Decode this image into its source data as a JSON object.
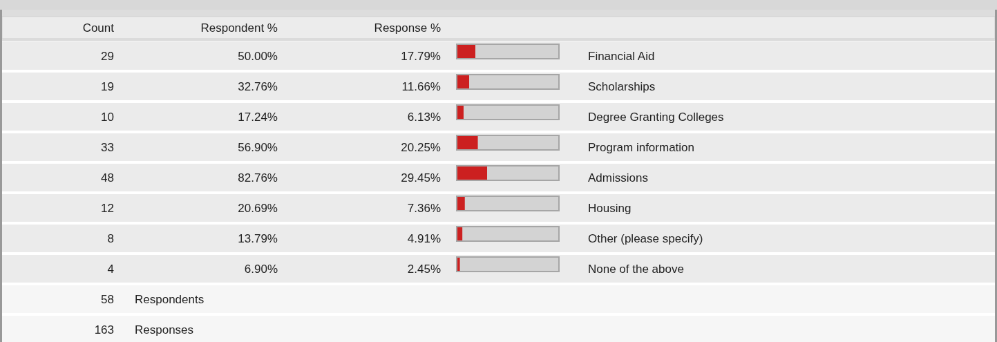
{
  "chart_data": {
    "type": "bar",
    "orientation": "horizontal",
    "xlim": [
      0,
      100
    ],
    "categories": [
      "Financial Aid",
      "Scholarships",
      "Degree Granting Colleges",
      "Program information",
      "Admissions",
      "Housing",
      "Other (please specify)",
      "None of the above"
    ],
    "values": [
      17.79,
      11.66,
      6.13,
      20.25,
      29.45,
      7.36,
      4.91,
      2.45
    ],
    "value_labels": [
      "17.79%",
      "11.66%",
      "6.13%",
      "20.25%",
      "29.45%",
      "7.36%",
      "4.91%",
      "2.45%"
    ],
    "color": "#cc2020",
    "annotations": [
      "Count",
      "Respondent %",
      "Response %",
      "29",
      "50.00%",
      "19",
      "32.76%",
      "10",
      "17.24%",
      "33",
      "56.90%",
      "48",
      "82.76%",
      "12",
      "20.69%",
      "8",
      "13.79%",
      "4",
      "6.90%",
      "58",
      "Respondents",
      "163",
      "Responses"
    ]
  }
}
